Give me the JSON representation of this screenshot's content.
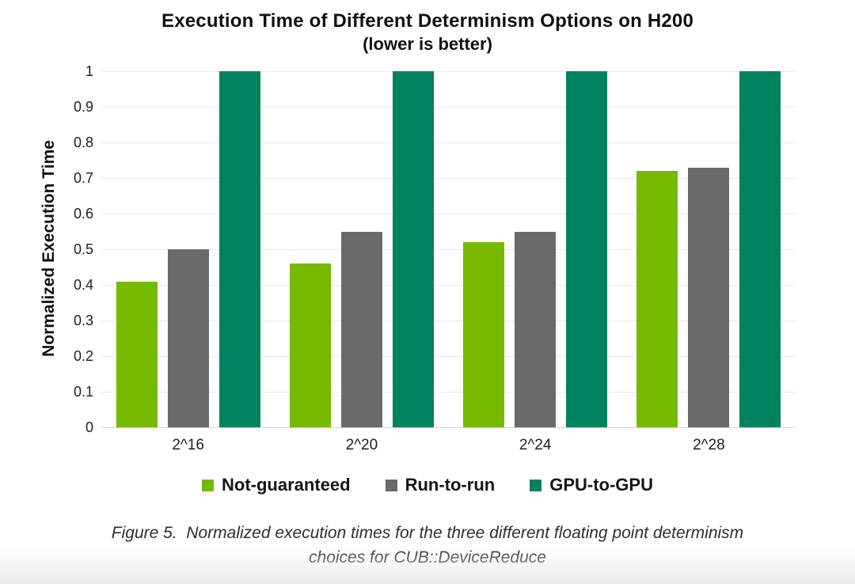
{
  "title": {
    "line1": "Execution Time of Different Determinism Options on H200",
    "line2": "(lower is better)"
  },
  "chart_data": {
    "type": "bar",
    "categories": [
      "2^16",
      "2^20",
      "2^24",
      "2^28"
    ],
    "series": [
      {
        "name": "Not-guaranteed",
        "color": "#76b900",
        "values": [
          0.41,
          0.46,
          0.52,
          0.72
        ]
      },
      {
        "name": "Run-to-run",
        "color": "#6a6a6a",
        "values": [
          0.5,
          0.55,
          0.55,
          0.73
        ]
      },
      {
        "name": "GPU-to-GPU",
        "color": "#00825f",
        "values": [
          1.0,
          1.0,
          1.0,
          1.0
        ]
      }
    ],
    "title": "Execution Time of Different Determinism Options on H200 (lower is better)",
    "xlabel": "",
    "ylabel": "Normalized Execution Time",
    "ylim": [
      0,
      1
    ],
    "ytick_step": 0.1,
    "ytick_labels": [
      "0",
      "0.1",
      "0.2",
      "0.3",
      "0.4",
      "0.5",
      "0.6",
      "0.7",
      "0.8",
      "0.9",
      "1"
    ],
    "grid": true,
    "legend_position": "bottom"
  },
  "legend_note": "legend items derive from chart_data.series",
  "caption": {
    "line1": "Figure 5.  Normalized execution times for the three different floating point determinism",
    "line2": "choices for CUB::DeviceReduce"
  },
  "colors": {
    "accent_green": "#76b900",
    "neutral_gray": "#6a6a6a",
    "accent_teal": "#00825f",
    "grid": "#e9e9e9",
    "baseline": "#d4d4d4",
    "text": "#111111"
  }
}
